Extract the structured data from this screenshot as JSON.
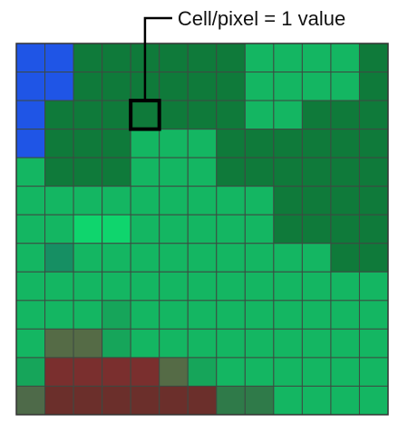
{
  "callout": {
    "label": "Cell/pixel = 1 value",
    "highlight_row": 2,
    "highlight_col": 4
  },
  "grid": {
    "rows": 13,
    "cols": 13,
    "palette": {
      "B": "#1f55e6",
      "D": "#0f7a3a",
      "d": "#148a44",
      "m": "#179a4d",
      "M": "#16a55a",
      "L": "#14b662",
      "l": "#1cc86b",
      "N": "#0fd56d",
      "T": "#168f63",
      "R": "#6b2f2b",
      "r": "#7a2f2e",
      "O": "#556b46",
      "o": "#4e6a49",
      "G": "#2f7a49"
    },
    "cells": [
      "BBDDDDDDLLLLD",
      "BBDDDDDDLLLLD",
      "BDDDDDDDLLDDD",
      "BDDDLLLDDDDDD",
      "LDDDLLLDDDDDD",
      "LLLLLLLLLDDDD",
      "LLNNLLLLLDDDD",
      "LTLLLLLLLLLDD",
      "LLLLLLLLLLLLL",
      "LLLMLLLLLLLLL",
      "LOOMLLLLLLLLL",
      "MrrrrOMLLLLLL",
      "oRRRRRRGGLLLL"
    ]
  }
}
